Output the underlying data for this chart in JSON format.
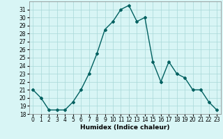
{
  "x": [
    0,
    1,
    2,
    3,
    4,
    5,
    6,
    7,
    8,
    9,
    10,
    11,
    12,
    13,
    14,
    15,
    16,
    17,
    18,
    19,
    20,
    21,
    22,
    23
  ],
  "y": [
    21,
    20,
    18.5,
    18.5,
    18.5,
    19.5,
    21,
    23,
    25.5,
    28.5,
    29.5,
    31,
    31.5,
    29.5,
    30,
    24.5,
    22,
    24.5,
    23,
    22.5,
    21,
    21,
    19.5,
    18.5
  ],
  "line_color": "#006060",
  "marker": "D",
  "marker_size": 2,
  "xlabel": "Humidex (Indice chaleur)",
  "xlim": [
    -0.5,
    23.5
  ],
  "ylim": [
    18,
    32
  ],
  "yticks": [
    18,
    19,
    20,
    21,
    22,
    23,
    24,
    25,
    26,
    27,
    28,
    29,
    30,
    31
  ],
  "xticks": [
    0,
    1,
    2,
    3,
    4,
    5,
    6,
    7,
    8,
    9,
    10,
    11,
    12,
    13,
    14,
    15,
    16,
    17,
    18,
    19,
    20,
    21,
    22,
    23
  ],
  "bg_color": "#d8f5f5",
  "grid_color": "#a8d8d8",
  "tick_fontsize": 5.5,
  "label_fontsize": 6.5,
  "linewidth": 1.0
}
